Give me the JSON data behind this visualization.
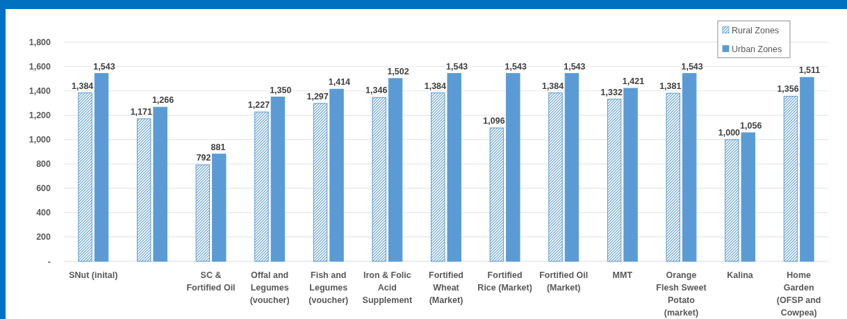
{
  "chart_data": {
    "type": "bar",
    "categories": [
      "SNut (inital)",
      null,
      "SC & Fortified Oil",
      "Offal and Legumes (voucher)",
      "Fish and Legumes (voucher)",
      "Iron & Folic Acid Supplement",
      "Fortified Wheat (Market)",
      "Fortified Rice (Market)",
      "Fortified Oil (Market)",
      "MMT",
      "Orange Flesh Sweet Potato (market)",
      "Kalina",
      "Home Garden (OFSP and Cowpea)"
    ],
    "series": [
      {
        "name": "Rural Zones",
        "color": "#5b9bd5",
        "values": [
          1384,
          1171,
          792,
          1227,
          1297,
          1346,
          1384,
          1096,
          1384,
          1332,
          1381,
          1000,
          1356
        ],
        "value_labels": [
          "1,384",
          "1,171",
          "792",
          "1,227",
          "1,297",
          "1,346",
          "1,384",
          "1,096",
          "1,384",
          "1,332",
          "1,381",
          "1,000",
          "1,356"
        ]
      },
      {
        "name": "Urban Zones",
        "color": "#5b9bd5",
        "values": [
          1543,
          1266,
          881,
          1350,
          1414,
          1502,
          1543,
          1543,
          1543,
          1421,
          1543,
          1056,
          1511
        ],
        "value_labels": [
          "1,543",
          "1,266",
          "881",
          "1,350",
          "1,414",
          "1,502",
          "1,543",
          "1,543",
          "1,543",
          "1,421",
          "1,543",
          "1,056",
          "1,511"
        ]
      }
    ],
    "ylim": [
      0,
      1800
    ],
    "yticks": [
      {
        "value": 0,
        "label": "-"
      },
      {
        "value": 200,
        "label": "200"
      },
      {
        "value": 400,
        "label": "400"
      },
      {
        "value": 600,
        "label": "600"
      },
      {
        "value": 800,
        "label": "800"
      },
      {
        "value": 1000,
        "label": "1,000"
      },
      {
        "value": 1200,
        "label": "1,200"
      },
      {
        "value": 1400,
        "label": "1,400"
      },
      {
        "value": 1600,
        "label": "1,600"
      },
      {
        "value": 1800,
        "label": "1,800"
      }
    ],
    "grid": "y",
    "legend": "top right"
  }
}
